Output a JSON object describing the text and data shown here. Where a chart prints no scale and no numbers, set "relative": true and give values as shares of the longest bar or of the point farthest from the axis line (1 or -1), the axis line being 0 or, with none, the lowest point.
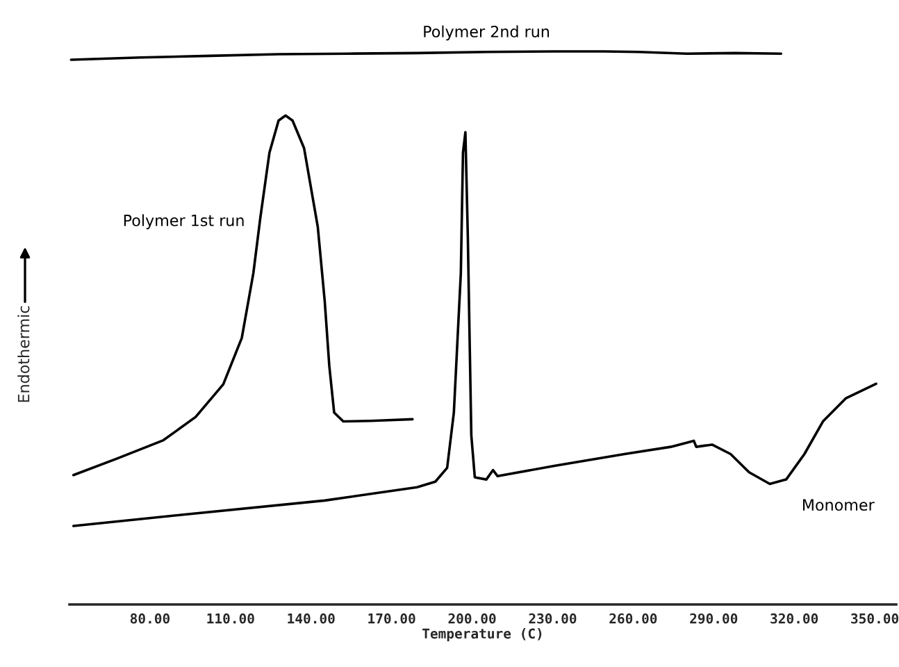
{
  "chart_data": {
    "type": "line",
    "relative": true,
    "xlabel": "Temperature (C)",
    "ylabel": "Endothermic",
    "xlim": [
      50,
      358
    ],
    "xticks": [
      {
        "value": 80,
        "label": "80.00"
      },
      {
        "value": 110,
        "label": "110.00"
      },
      {
        "value": 140,
        "label": "140.00"
      },
      {
        "value": 170,
        "label": "170.00"
      },
      {
        "value": 200,
        "label": "200.00"
      },
      {
        "value": 230,
        "label": "230.00"
      },
      {
        "value": 260,
        "label": "260.00"
      },
      {
        "value": 290,
        "label": "290.00"
      },
      {
        "value": 320,
        "label": "320.00"
      },
      {
        "value": 350,
        "label": "350.00"
      }
    ],
    "series": [
      {
        "name": "Polymer 2nd run",
        "color": "#000000",
        "x": [
          50.6,
          76.4,
          102.2,
          127.9,
          153.7,
          179.5,
          205.3,
          231.0,
          249.1,
          262.0,
          280.0,
          298.0,
          315.1
        ],
        "values": [
          0.985,
          0.989,
          0.992,
          0.995,
          0.996,
          0.997,
          0.999,
          1.0,
          1.0,
          0.999,
          0.996,
          0.997,
          0.996
        ]
      },
      {
        "name": "Polymer 1st run",
        "color": "#000000",
        "x": [
          51.5,
          67.8,
          85.0,
          97.0,
          107.3,
          114.2,
          118.5,
          121.1,
          124.5,
          127.9,
          130.5,
          133.1,
          137.4,
          142.5,
          145.1,
          146.8,
          148.6,
          152.0,
          162.3,
          177.8
        ],
        "values": [
          0.234,
          0.264,
          0.297,
          0.339,
          0.398,
          0.482,
          0.599,
          0.699,
          0.817,
          0.875,
          0.884,
          0.875,
          0.825,
          0.683,
          0.548,
          0.431,
          0.347,
          0.331,
          0.332,
          0.335
        ]
      },
      {
        "name": "Monomer",
        "color": "#000000",
        "x": [
          51.5,
          93.6,
          145.1,
          179.5,
          186.3,
          190.7,
          193.2,
          195.8,
          196.6,
          197.5,
          198.4,
          199.7,
          201.0,
          205.3,
          207.8,
          209.5,
          231.0,
          256.8,
          274.0,
          282.6,
          283.5,
          289.4,
          296.3,
          303.2,
          310.9,
          317.0,
          323.8,
          330.7,
          339.3,
          350.5
        ],
        "values": [
          0.142,
          0.163,
          0.188,
          0.212,
          0.222,
          0.247,
          0.347,
          0.599,
          0.817,
          0.854,
          0.666,
          0.306,
          0.23,
          0.226,
          0.243,
          0.232,
          0.251,
          0.272,
          0.285,
          0.296,
          0.285,
          0.289,
          0.272,
          0.239,
          0.218,
          0.226,
          0.272,
          0.331,
          0.373,
          0.399
        ]
      }
    ]
  }
}
